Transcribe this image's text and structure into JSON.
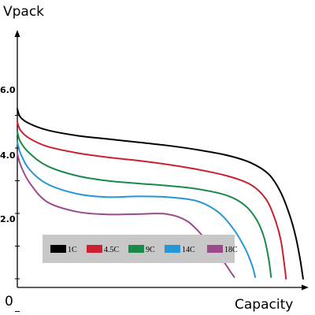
{
  "chart_data": {
    "type": "line",
    "ylabel": "Vpack",
    "xlabel": "Capacity",
    "origin_label": "0",
    "y_ticks": [
      "2.0",
      "4.0",
      "6.0"
    ],
    "xlim": [
      0,
      100
    ],
    "ylim": [
      0,
      8
    ],
    "grid": false,
    "legend_position": "bottom-left",
    "series": [
      {
        "name": "1C",
        "color": "#000000",
        "points": [
          [
            0,
            7.2
          ],
          [
            1,
            6.95
          ],
          [
            4,
            6.75
          ],
          [
            10,
            6.55
          ],
          [
            20,
            6.38
          ],
          [
            30,
            6.28
          ],
          [
            40,
            6.18
          ],
          [
            50,
            6.08
          ],
          [
            60,
            5.95
          ],
          [
            70,
            5.78
          ],
          [
            78,
            5.55
          ],
          [
            84,
            5.2
          ],
          [
            88,
            4.65
          ],
          [
            91,
            3.95
          ],
          [
            93,
            3.3
          ],
          [
            94.5,
            2.6
          ],
          [
            95.5,
            2.0
          ]
        ]
      },
      {
        "name": "4.5C",
        "color": "#cc2030",
        "points": [
          [
            0,
            6.8
          ],
          [
            1,
            6.55
          ],
          [
            4,
            6.3
          ],
          [
            10,
            6.05
          ],
          [
            20,
            5.85
          ],
          [
            30,
            5.72
          ],
          [
            40,
            5.62
          ],
          [
            50,
            5.5
          ],
          [
            60,
            5.35
          ],
          [
            70,
            5.15
          ],
          [
            78,
            4.88
          ],
          [
            83,
            4.45
          ],
          [
            86,
            3.85
          ],
          [
            88,
            3.2
          ],
          [
            89,
            2.6
          ],
          [
            89.8,
            2.0
          ]
        ]
      },
      {
        "name": "9C",
        "color": "#1a8a48",
        "points": [
          [
            0,
            6.5
          ],
          [
            1,
            6.2
          ],
          [
            4,
            5.85
          ],
          [
            10,
            5.45
          ],
          [
            20,
            5.15
          ],
          [
            30,
            5.0
          ],
          [
            40,
            4.92
          ],
          [
            50,
            4.85
          ],
          [
            60,
            4.75
          ],
          [
            70,
            4.55
          ],
          [
            76,
            4.25
          ],
          [
            80,
            3.8
          ],
          [
            82.5,
            3.25
          ],
          [
            84,
            2.6
          ],
          [
            84.8,
            2.05
          ]
        ]
      },
      {
        "name": "14C",
        "color": "#2596d6",
        "points": [
          [
            0,
            6.2
          ],
          [
            1,
            5.85
          ],
          [
            4,
            5.35
          ],
          [
            10,
            4.9
          ],
          [
            20,
            4.6
          ],
          [
            30,
            4.5
          ],
          [
            40,
            4.52
          ],
          [
            50,
            4.5
          ],
          [
            60,
            4.38
          ],
          [
            67,
            4.05
          ],
          [
            72,
            3.55
          ],
          [
            76,
            2.95
          ],
          [
            78.5,
            2.4
          ],
          [
            79.5,
            2.05
          ]
        ]
      },
      {
        "name": "18C",
        "color": "#9c4a8a",
        "points": [
          [
            0,
            5.85
          ],
          [
            1,
            5.5
          ],
          [
            4,
            4.95
          ],
          [
            10,
            4.35
          ],
          [
            20,
            4.05
          ],
          [
            30,
            3.97
          ],
          [
            40,
            3.98
          ],
          [
            50,
            3.98
          ],
          [
            57,
            3.75
          ],
          [
            63,
            3.2
          ],
          [
            68,
            2.65
          ],
          [
            71,
            2.25
          ],
          [
            72.5,
            2.05
          ]
        ]
      }
    ]
  }
}
